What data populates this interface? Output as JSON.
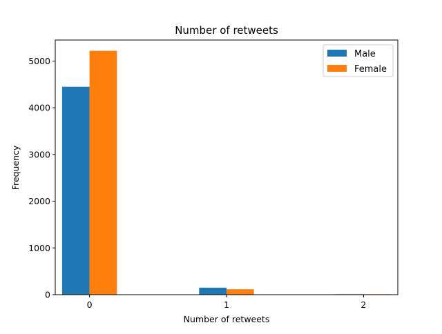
{
  "chart_data": {
    "type": "bar",
    "title": "Number of retweets",
    "xlabel": "Number of retweets",
    "ylabel": "Frequency",
    "categories": [
      "0",
      "1",
      "2"
    ],
    "series": [
      {
        "name": "Male",
        "values": [
          4450,
          150,
          10
        ],
        "color": "#1f77b4"
      },
      {
        "name": "Female",
        "values": [
          5220,
          115,
          10
        ],
        "color": "#ff7f0e"
      }
    ],
    "yticks": [
      0,
      1000,
      2000,
      3000,
      4000,
      5000
    ],
    "ylim": [
      0,
      5450
    ],
    "grid": false,
    "legend_position": "top-right"
  }
}
